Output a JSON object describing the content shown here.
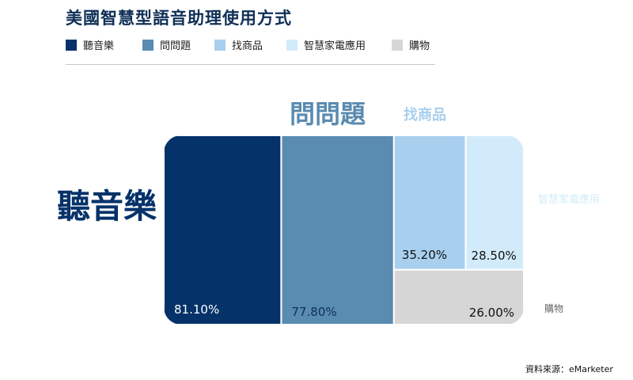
{
  "title": "美國智慧型語音助理使用方式",
  "source": "資料來源：eMarketer",
  "legend": [
    {
      "label": "聽音樂",
      "color": "#06326a"
    },
    {
      "label": "問問題",
      "color": "#5a8bb1"
    },
    {
      "label": "找商品",
      "color": "#a8cfee"
    },
    {
      "label": "智慧家電應用",
      "color": "#d2ebfa"
    },
    {
      "label": "購物",
      "color": "#d7d6d6"
    }
  ],
  "chart_data": {
    "type": "treemap",
    "title": "美國智慧型語音助理使用方式",
    "items": [
      {
        "name": "聽音樂",
        "value": 81.1,
        "label": "81.10%",
        "color": "#06326a"
      },
      {
        "name": "問問題",
        "value": 77.8,
        "label": "77.80%",
        "color": "#5a8bb1"
      },
      {
        "name": "找商品",
        "value": 35.2,
        "label": "35.20%",
        "color": "#a8cfee"
      },
      {
        "name": "智慧家電應用",
        "value": 28.5,
        "label": "28.50%",
        "color": "#d2ebfa"
      },
      {
        "name": "購物",
        "value": 26.0,
        "label": "26.00%",
        "color": "#d7d6d6"
      }
    ]
  }
}
